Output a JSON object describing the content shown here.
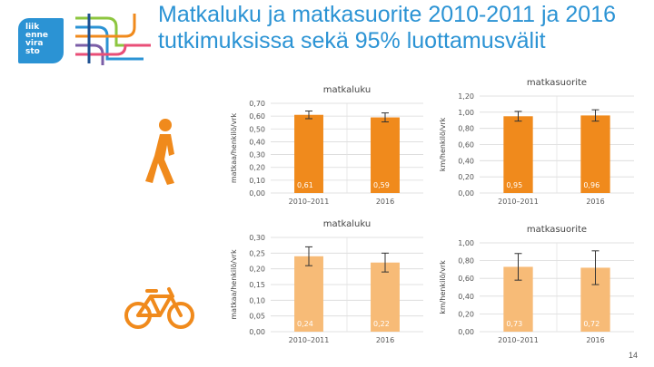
{
  "slide": {
    "title": "Matkaluku ja matkasuorite 2010-2011 ja 2016 tutkimuksissa sekä 95% luottamusvälit",
    "page_number": "14",
    "logo_lines": [
      "liik",
      "enne",
      "vira",
      "sto"
    ],
    "brand_color": "#2b93d4",
    "accent_color": "#f08a1c"
  },
  "chart_data": [
    {
      "id": "walk-trips",
      "type": "bar",
      "title": "matkaluku",
      "ylabel": "matkaa/henkilö/vrk",
      "categories": [
        "2010–2011",
        "2016"
      ],
      "values": [
        0.61,
        0.59
      ],
      "value_labels": [
        "0,61",
        "0,59"
      ],
      "error": [
        0.03,
        0.035
      ],
      "ylim": [
        0,
        0.7
      ],
      "ticks": [
        "0,00",
        "0,10",
        "0,20",
        "0,30",
        "0,40",
        "0,50",
        "0,60",
        "0,70"
      ],
      "bar_color": "#f08a1c",
      "grid": true
    },
    {
      "id": "walk-distance",
      "type": "bar",
      "title": "matkasuorite",
      "ylabel": "km/henkilö/vrk",
      "categories": [
        "2010–2011",
        "2016"
      ],
      "values": [
        0.95,
        0.96
      ],
      "value_labels": [
        "0,95",
        "0,96"
      ],
      "error": [
        0.06,
        0.07
      ],
      "ylim": [
        0,
        1.2
      ],
      "ticks": [
        "0,00",
        "0,20",
        "0,40",
        "0,60",
        "0,80",
        "1,00",
        "1,20"
      ],
      "bar_color": "#f08a1c",
      "grid": true
    },
    {
      "id": "bike-trips",
      "type": "bar",
      "title": "matkaluku",
      "ylabel": "matkaa/henkilö/vrk",
      "categories": [
        "2010–2011",
        "2016"
      ],
      "values": [
        0.24,
        0.22
      ],
      "value_labels": [
        "0,24",
        "0,22"
      ],
      "error": [
        0.03,
        0.03
      ],
      "ylim": [
        0,
        0.3
      ],
      "ticks": [
        "0,00",
        "0,05",
        "0,10",
        "0,15",
        "0,20",
        "0,25",
        "0,30"
      ],
      "bar_color": "#f7bb77",
      "grid": true
    },
    {
      "id": "bike-distance",
      "type": "bar",
      "title": "matkasuorite",
      "ylabel": "km/henkilö/vrk",
      "categories": [
        "2010–2011",
        "2016"
      ],
      "values": [
        0.73,
        0.72
      ],
      "value_labels": [
        "0,73",
        "0,72"
      ],
      "error": [
        0.15,
        0.19
      ],
      "ylim": [
        0,
        1.0
      ],
      "ticks": [
        "0,00",
        "0,20",
        "0,40",
        "0,60",
        "0,80",
        "1,00"
      ],
      "bar_color": "#f7bb77",
      "grid": true
    }
  ]
}
